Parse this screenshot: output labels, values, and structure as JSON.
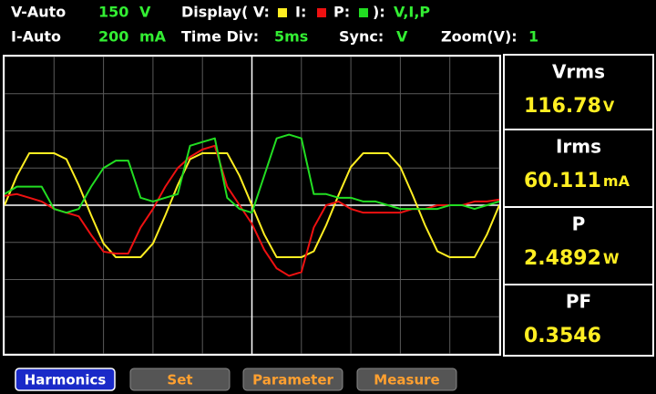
{
  "header": {
    "row1": {
      "mode": "V-Auto",
      "range": "150",
      "unit": "V",
      "display_label": "Display( V:",
      "i_label": "I:",
      "p_label": "P:",
      "display_close": "):",
      "display_value": "V,I,P"
    },
    "row2": {
      "mode": "I-Auto",
      "range": "200",
      "unit": "mA",
      "time_label": "Time Div:",
      "time_value": "5ms",
      "sync_label": "Sync:",
      "sync_value": "V",
      "zoom_label": "Zoom(V):",
      "zoom_value": "1"
    }
  },
  "chart_data": {
    "type": "line",
    "x": [
      0,
      0.25,
      0.5,
      0.75,
      1,
      1.25,
      1.5,
      1.75,
      2,
      2.25,
      2.5,
      2.75,
      3,
      3.25,
      3.5,
      3.75,
      4,
      4.25,
      4.5,
      4.75,
      5,
      5.25,
      5.5,
      5.75,
      6,
      6.25,
      6.5,
      6.75,
      7,
      7.25,
      7.5,
      7.75,
      8,
      8.25,
      8.5,
      8.75,
      9,
      9.25,
      9.5,
      9.75,
      10
    ],
    "xlim": [
      0,
      10
    ],
    "ylim": [
      -4,
      4
    ],
    "xticks": [
      0,
      1,
      2,
      3,
      4,
      5,
      6,
      7,
      8,
      9,
      10
    ],
    "yticks": [
      -4,
      -3,
      -2,
      -1,
      0,
      1,
      2,
      3,
      4
    ],
    "grid": true,
    "series": [
      {
        "color": "#ffee22",
        "values": [
          0,
          0.79,
          1.4,
          1.4,
          1.4,
          1.24,
          0.54,
          -0.27,
          -1.03,
          -1.4,
          -1.4,
          -1.4,
          -1.03,
          -0.27,
          0.54,
          1.24,
          1.4,
          1.4,
          1.4,
          0.79,
          0,
          -0.79,
          -1.4,
          -1.4,
          -1.4,
          -1.24,
          -0.54,
          0.27,
          1.03,
          1.4,
          1.4,
          1.4,
          1.03,
          0.27,
          -0.54,
          -1.24,
          -1.4,
          -1.4,
          -1.4,
          -0.79,
          0
        ]
      },
      {
        "color": "#ee1111",
        "values": [
          0.25,
          0.3,
          0.2,
          0.1,
          -0.1,
          -0.2,
          -0.3,
          -0.8,
          -1.25,
          -1.3,
          -1.3,
          -0.6,
          -0.1,
          0.5,
          1.0,
          1.3,
          1.5,
          1.6,
          0.5,
          0,
          -0.5,
          -1.2,
          -1.7,
          -1.9,
          -1.8,
          -0.6,
          0,
          0.1,
          -0.1,
          -0.2,
          -0.2,
          -0.2,
          -0.2,
          -0.1,
          -0.1,
          0,
          0,
          0,
          0.1,
          0.1,
          0.15
        ]
      },
      {
        "color": "#22dd22",
        "values": [
          0.3,
          0.5,
          0.5,
          0.5,
          -0.1,
          -0.2,
          -0.1,
          0.5,
          1.0,
          1.2,
          1.2,
          0.2,
          0.1,
          0.2,
          0.3,
          1.6,
          1.7,
          1.8,
          0.2,
          -0.1,
          -0.2,
          0.8,
          1.8,
          1.9,
          1.8,
          0.3,
          0.3,
          0.2,
          0.2,
          0.1,
          0.1,
          0,
          -0.1,
          -0.1,
          -0.1,
          -0.1,
          0,
          0,
          -0.1,
          0,
          0.1
        ]
      }
    ]
  },
  "measurements": [
    {
      "label": "Vrms",
      "value": "116.78",
      "unit": "V"
    },
    {
      "label": "Irms",
      "value": "60.111",
      "unit": "mA"
    },
    {
      "label": "P",
      "value": "2.4892",
      "unit": "W"
    },
    {
      "label": "PF",
      "value": "0.3546"
    }
  ],
  "buttons": [
    "Harmonics",
    "Set",
    "Parameter",
    "Measure"
  ]
}
